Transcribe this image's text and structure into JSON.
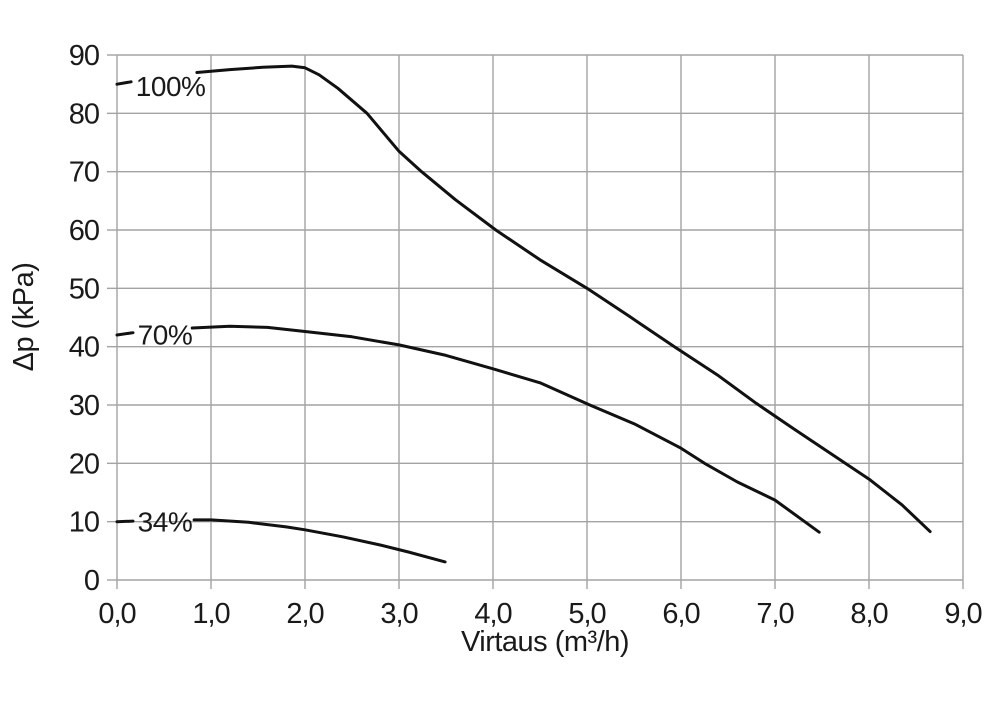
{
  "chart_data": {
    "type": "line",
    "title": "",
    "xlabel": "Virtaus (m³/h)",
    "ylabel": "Δp (kPa)",
    "xlim": [
      0,
      9
    ],
    "ylim": [
      0,
      90
    ],
    "grid": true,
    "legend_position": "inline-labels",
    "x_ticks": [
      0,
      1,
      2,
      3,
      4,
      5,
      6,
      7,
      8,
      9
    ],
    "x_tick_labels": [
      "0,0",
      "1,0",
      "2,0",
      "3,0",
      "4,0",
      "5,0",
      "6,0",
      "7,0",
      "8,0",
      "9,0"
    ],
    "y_ticks": [
      0,
      10,
      20,
      30,
      40,
      50,
      60,
      70,
      80,
      90
    ],
    "y_tick_labels": [
      "0",
      "10",
      "20",
      "30",
      "40",
      "50",
      "60",
      "70",
      "80",
      "90"
    ],
    "colors": {
      "curve": "#111111",
      "grid": "#a3a3a3",
      "text": "#1a1a1a",
      "background": "#ffffff"
    },
    "series": [
      {
        "name": "100%",
        "label": {
          "text": "100%",
          "x": 0.2,
          "y": 84.7
        },
        "leader": [
          [
            0,
            85.0
          ],
          [
            0.15,
            85.4
          ]
        ],
        "points": [
          [
            0.85,
            87.0
          ],
          [
            1.2,
            87.5
          ],
          [
            1.55,
            87.9
          ],
          [
            1.86,
            88.1
          ],
          [
            2.0,
            87.8
          ],
          [
            2.15,
            86.6
          ],
          [
            2.35,
            84.3
          ],
          [
            2.66,
            80.0
          ],
          [
            3.0,
            73.5
          ],
          [
            3.24,
            70.0
          ],
          [
            3.6,
            65.2
          ],
          [
            4.03,
            60.0
          ],
          [
            4.5,
            54.9
          ],
          [
            5.0,
            50.0
          ],
          [
            5.45,
            45.2
          ],
          [
            5.93,
            40.0
          ],
          [
            6.4,
            35.0
          ],
          [
            6.8,
            30.3
          ],
          [
            7.2,
            25.9
          ],
          [
            7.6,
            21.6
          ],
          [
            8.0,
            17.3
          ],
          [
            8.35,
            12.9
          ],
          [
            8.65,
            8.3
          ]
        ]
      },
      {
        "name": "70%",
        "label": {
          "text": "70%",
          "x": 0.22,
          "y": 42.1
        },
        "leader": [
          [
            0,
            42.0
          ],
          [
            0.17,
            42.4
          ]
        ],
        "points": [
          [
            0.8,
            43.2
          ],
          [
            1.2,
            43.5
          ],
          [
            1.6,
            43.3
          ],
          [
            2.0,
            42.6
          ],
          [
            2.5,
            41.7
          ],
          [
            3.0,
            40.3
          ],
          [
            3.5,
            38.5
          ],
          [
            4.0,
            36.2
          ],
          [
            4.5,
            33.8
          ],
          [
            5.03,
            30.0
          ],
          [
            5.5,
            26.8
          ],
          [
            6.0,
            22.6
          ],
          [
            6.25,
            20.0
          ],
          [
            6.6,
            16.8
          ],
          [
            7.0,
            13.7
          ],
          [
            7.47,
            8.2
          ]
        ]
      },
      {
        "name": "34%",
        "label": {
          "text": "34%",
          "x": 0.22,
          "y": 10.0
        },
        "leader": [
          [
            0,
            10.0
          ],
          [
            0.17,
            10.1
          ]
        ],
        "points": [
          [
            0.82,
            10.3
          ],
          [
            1.0,
            10.3
          ],
          [
            1.4,
            9.9
          ],
          [
            1.8,
            9.1
          ],
          [
            2.0,
            8.6
          ],
          [
            2.4,
            7.4
          ],
          [
            2.8,
            6.0
          ],
          [
            3.1,
            4.8
          ],
          [
            3.49,
            3.1
          ]
        ]
      }
    ]
  }
}
